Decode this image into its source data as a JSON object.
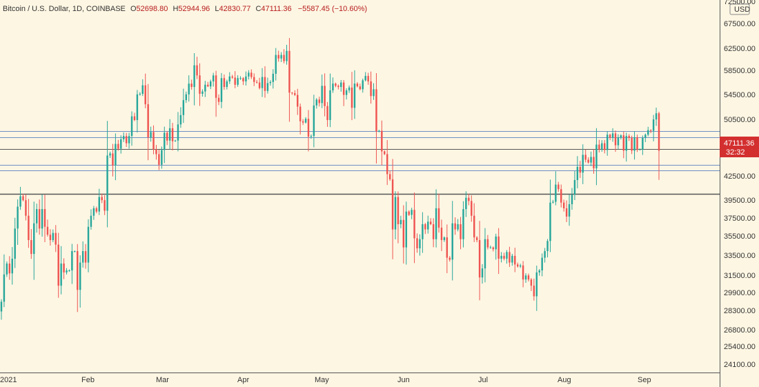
{
  "header": {
    "symbol": "Bitcoin / U.S. Dollar, 1D, COINBASE",
    "o_label": "O",
    "o_value": "52698.80",
    "h_label": "H",
    "h_value": "52944.96",
    "l_label": "L",
    "l_value": "42830.77",
    "c_label": "C",
    "c_value": "47111.36",
    "change": "−5587.45 (−10.60%)"
  },
  "colors": {
    "background": "#fdf6e3",
    "up": "#26a69a",
    "down": "#ef5350",
    "support_line": "#6d8fc4",
    "key_level": "#555555",
    "price_badge": "#d32f2f",
    "header_value": "#b71c1c"
  },
  "price_scale": {
    "currency": "USD",
    "top_label": "72500.00",
    "ticks": [
      "67500.00",
      "62500.00",
      "58500.00",
      "54500.00",
      "50500.00",
      "47111.36",
      "42500.00",
      "39500.00",
      "37500.00",
      "35500.00",
      "33500.00",
      "31500.00",
      "29900.00",
      "28300.00",
      "26800.00",
      "25400.00",
      "24100.00"
    ],
    "last_price": "47111.36",
    "countdown": "32:32"
  },
  "chart_data": {
    "type": "candlestick",
    "title": "Bitcoin / U.S. Dollar, 1D, COINBASE",
    "y_axis": "log",
    "ylim": [
      23500,
      75000
    ],
    "x_ticks": [
      {
        "label": "2021",
        "date": "2021-01-01"
      },
      {
        "label": "Feb",
        "date": "2021-02-01"
      },
      {
        "label": "Mar",
        "date": "2021-03-01"
      },
      {
        "label": "Apr",
        "date": "2021-04-01"
      },
      {
        "label": "May",
        "date": "2021-05-01"
      },
      {
        "label": "Jun",
        "date": "2021-06-01"
      },
      {
        "label": "Jul",
        "date": "2021-07-01"
      },
      {
        "label": "Aug",
        "date": "2021-08-01"
      },
      {
        "label": "Sep",
        "date": "2021-09-01"
      }
    ],
    "horizontal_lines": [
      {
        "price": 49900,
        "style": "support"
      },
      {
        "price": 48900,
        "style": "support"
      },
      {
        "price": 44900,
        "style": "support"
      },
      {
        "price": 44100,
        "style": "support"
      },
      {
        "price": 41000,
        "style": "key"
      }
    ],
    "current_price_line": 47111.36,
    "closes": [
      29300,
      31900,
      33000,
      32000,
      33500,
      36800,
      39400,
      40700,
      40200,
      38300,
      35500,
      34000,
      37400,
      39100,
      36800,
      39100,
      37000,
      36100,
      35500,
      36300,
      35000,
      30800,
      33000,
      32100,
      32300,
      32300,
      34300,
      34300,
      30400,
      33100,
      34300,
      33100,
      37000,
      38300,
      39200,
      38800,
      40600,
      40200,
      38900,
      46200,
      46500,
      44800,
      47900,
      47200,
      48600,
      49100,
      48000,
      49100,
      52200,
      51600,
      55900,
      56000,
      57500,
      54200,
      48900,
      49700,
      47100,
      46400,
      44900,
      47000,
      49600,
      48400,
      50300,
      48300,
      48400,
      50900,
      52400,
      54900,
      55900,
      57800,
      57200,
      61200,
      59300,
      56000,
      56400,
      57600,
      57300,
      58200,
      59300,
      55300,
      54600,
      58800,
      57200,
      58200,
      59100,
      58900,
      57600,
      58800,
      58800,
      58200,
      59100,
      59800,
      59000,
      58100,
      58000,
      57000,
      59000,
      56500,
      57900,
      58100,
      59600,
      63200,
      62500,
      63200,
      62000,
      64000,
      56200,
      56100,
      55800,
      53800,
      51400,
      51200,
      51800,
      49000,
      49100,
      54000,
      55000,
      54400,
      57400,
      53900,
      51600,
      56600,
      57800,
      57400,
      57200,
      58000,
      55800,
      56600,
      57100,
      53600,
      57800,
      57300,
      56800,
      58400,
      59200,
      58200,
      55600,
      56800,
      49800,
      49900,
      46800,
      46400,
      43600,
      42900,
      36700,
      40600,
      37300,
      37800,
      34700,
      38800,
      38400,
      39000,
      35700,
      34600,
      35600,
      37300,
      36700,
      37600,
      37300,
      35600,
      39200,
      36900,
      35500,
      35800,
      33600,
      33400,
      37400,
      36700,
      37300,
      35600,
      39100,
      40500,
      40100,
      38300,
      35800,
      35500,
      31600,
      32500,
      35600,
      34700,
      34700,
      34500,
      35900,
      33500,
      33800,
      33500,
      34200,
      33100,
      33800,
      32900,
      32700,
      32800,
      31400,
      31800,
      31400,
      30800,
      29800,
      32100,
      32300,
      33600,
      34300,
      35400,
      39900,
      40000,
      42200,
      41600,
      39900,
      39200,
      38200,
      39700,
      40900,
      42800,
      44600,
      43800,
      46300,
      45600,
      45200,
      46000,
      44400,
      47800,
      47100,
      48000,
      47000,
      49300,
      48800,
      49500,
      47700,
      48900,
      49200,
      46900,
      49100,
      48800,
      46900,
      48900,
      47100,
      47100,
      48800,
      49300,
      50000,
      49900,
      51700,
      52700,
      46900
    ],
    "ohlc_last": {
      "open": 52698.8,
      "high": 52944.96,
      "low": 42830.77,
      "close": 47111.36,
      "change": -5587.45,
      "change_pct": -10.6
    }
  }
}
